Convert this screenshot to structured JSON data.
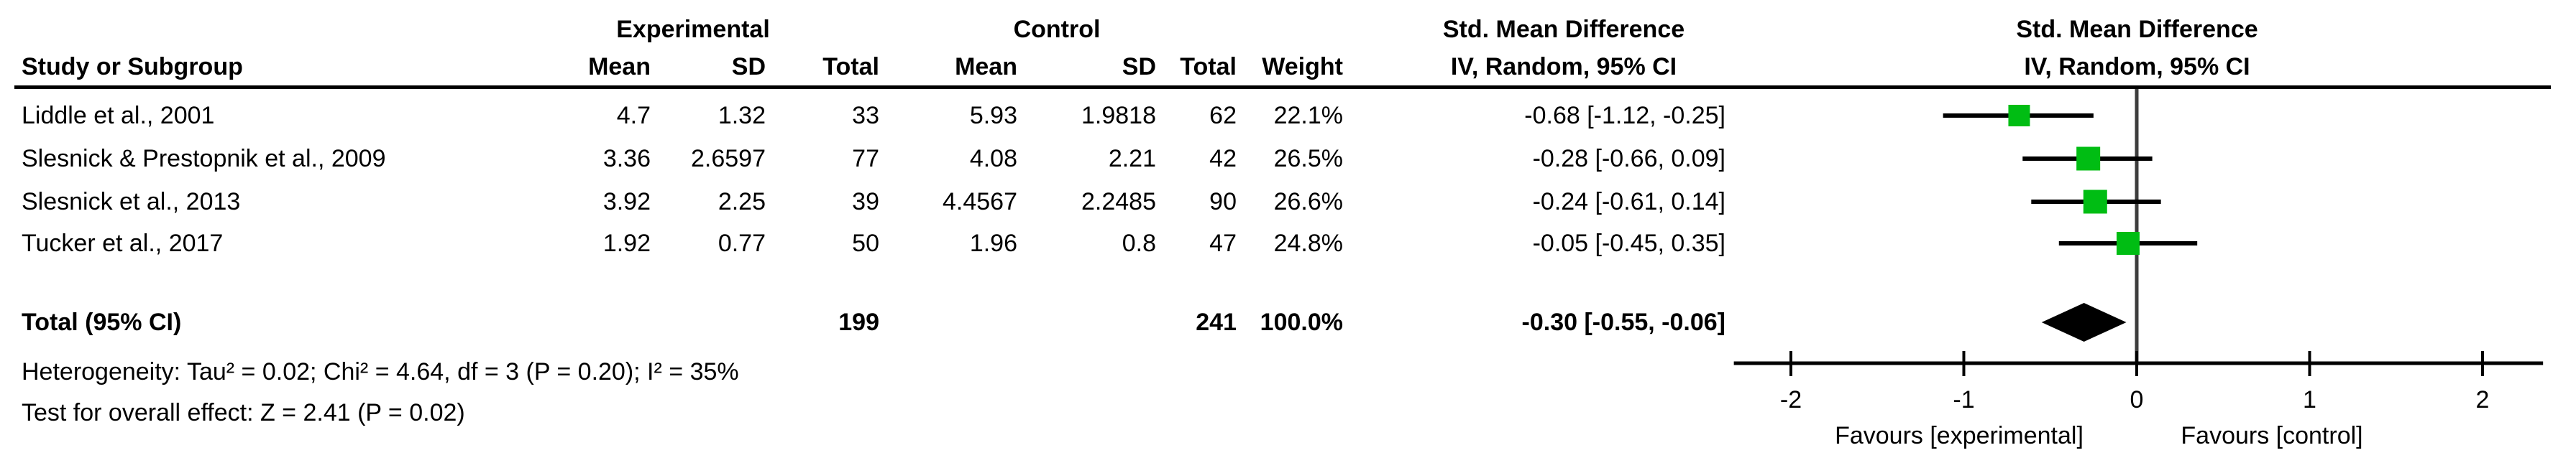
{
  "chart_data": {
    "type": "forest",
    "group_headers": {
      "experimental": "Experimental",
      "control": "Control",
      "smd_text_col": "Std. Mean Difference",
      "smd_plot_col": "Std. Mean Difference"
    },
    "col_headers": {
      "study": "Study or Subgroup",
      "mean": "Mean",
      "sd": "SD",
      "total": "Total",
      "mean2": "Mean",
      "sd2": "SD",
      "total2": "Total",
      "weight": "Weight",
      "ci_text_col": "IV, Random, 95% CI",
      "ci_plot_col": "IV, Random, 95% CI"
    },
    "studies": [
      {
        "study": "Liddle et al., 2001",
        "exp_mean": "4.7",
        "exp_sd": "1.32",
        "exp_total": "33",
        "ctl_mean": "5.93",
        "ctl_sd": "1.9818",
        "ctl_total": "62",
        "weight": "22.1%",
        "ci_text": "-0.68 [-1.12, -0.25]",
        "est": -0.68,
        "lo": -1.12,
        "hi": -0.25,
        "weight_pct": 22.1
      },
      {
        "study": "Slesnick & Prestopnik et al., 2009",
        "exp_mean": "3.36",
        "exp_sd": "2.6597",
        "exp_total": "77",
        "ctl_mean": "4.08",
        "ctl_sd": "2.21",
        "ctl_total": "42",
        "weight": "26.5%",
        "ci_text": "-0.28 [-0.66, 0.09]",
        "est": -0.28,
        "lo": -0.66,
        "hi": 0.09,
        "weight_pct": 26.5
      },
      {
        "study": "Slesnick et al., 2013",
        "exp_mean": "3.92",
        "exp_sd": "2.25",
        "exp_total": "39",
        "ctl_mean": "4.4567",
        "ctl_sd": "2.2485",
        "ctl_total": "90",
        "weight": "26.6%",
        "ci_text": "-0.24 [-0.61, 0.14]",
        "est": -0.24,
        "lo": -0.61,
        "hi": 0.14,
        "weight_pct": 26.6
      },
      {
        "study": "Tucker et al., 2017",
        "exp_mean": "1.92",
        "exp_sd": "0.77",
        "exp_total": "50",
        "ctl_mean": "1.96",
        "ctl_sd": "0.8",
        "ctl_total": "47",
        "weight": "24.8%",
        "ci_text": "-0.05 [-0.45, 0.35]",
        "est": -0.05,
        "lo": -0.45,
        "hi": 0.35,
        "weight_pct": 24.8
      }
    ],
    "total": {
      "label": "Total (95% CI)",
      "exp_total": "199",
      "ctl_total": "241",
      "weight": "100.0%",
      "ci_text": "-0.30 [-0.55, -0.06]",
      "est": -0.3,
      "lo": -0.55,
      "hi": -0.06
    },
    "footnotes": [
      "Heterogeneity: Tau² = 0.02; Chi² = 4.64, df = 3 (P = 0.20); I² = 35%",
      "Test for overall effect: Z = 2.41 (P = 0.02)"
    ],
    "axis": {
      "ticks": [
        -2,
        -1,
        0,
        1,
        2
      ],
      "tick_labels": [
        "-2",
        "-1",
        "0",
        "1",
        "2"
      ],
      "xlim": [
        -2.33,
        2.35
      ],
      "favours_left": "Favours [experimental]",
      "favours_right": "Favours [control]"
    },
    "colors": {
      "square": "#00bd13",
      "diamond": "#000000",
      "ci_line": "#000000",
      "axis": "#000000",
      "zero_line": "#3d3d3d"
    }
  }
}
